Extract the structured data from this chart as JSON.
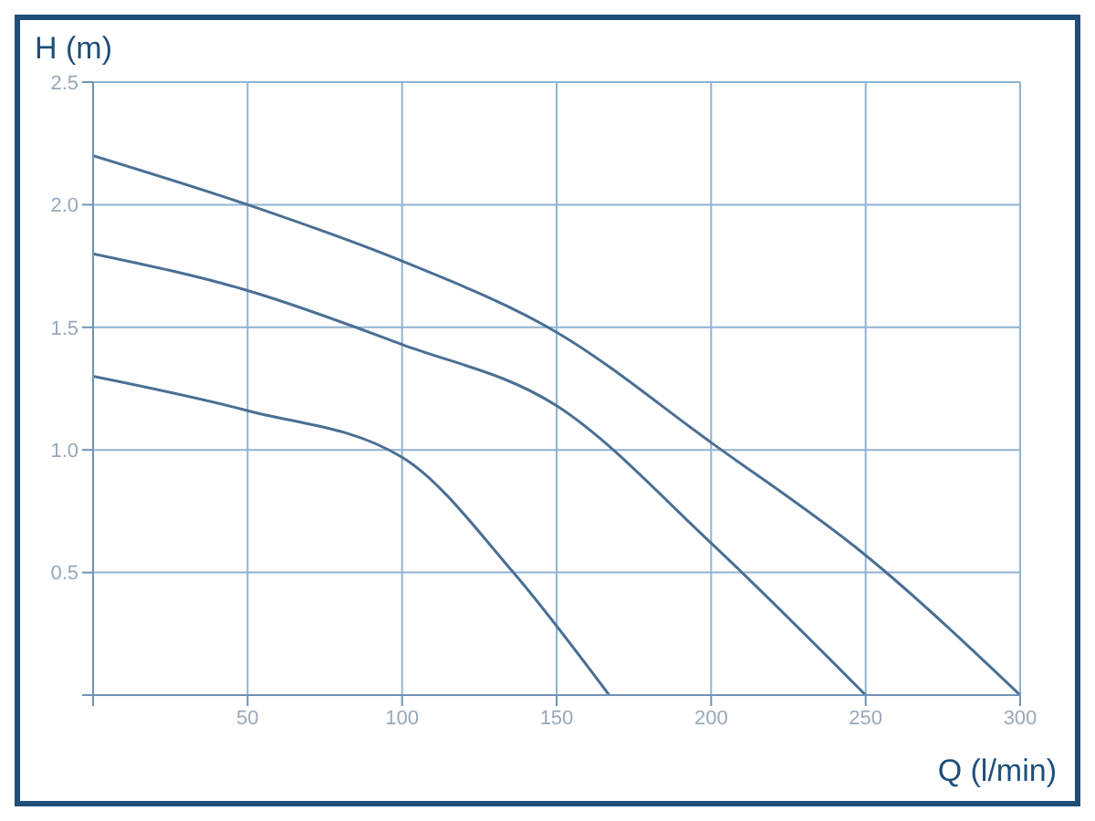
{
  "chart_data": {
    "type": "line",
    "xlabel": "Q (l/min)",
    "ylabel": "H (m)",
    "series": [
      {
        "color": "#4a6f94",
        "x": [
          0,
          50,
          100,
          150,
          200,
          250,
          300
        ],
        "values": [
          2.2,
          2.0,
          1.77,
          1.48,
          1.03,
          0.57,
          0
        ]
      },
      {
        "color": "#4a6f94",
        "x": [
          0,
          50,
          100,
          150,
          200,
          250
        ],
        "values": [
          1.8,
          1.65,
          1.43,
          1.18,
          0.62,
          0
        ]
      },
      {
        "color": "#4a6f94",
        "x": [
          0,
          50,
          100,
          136,
          167
        ],
        "values": [
          1.3,
          1.16,
          0.97,
          0.5,
          0
        ]
      }
    ],
    "xlim": [
      0,
      300
    ],
    "xticks": [
      {
        "value": 0,
        "label": null
      },
      50,
      100,
      150,
      200,
      250,
      300
    ],
    "ylim": [
      0,
      2.5
    ],
    "yticks": [
      {
        "value": 0,
        "label": null
      },
      0.5,
      {
        "value": 1,
        "label": "1.0"
      },
      1.5,
      {
        "value": 2,
        "label": "2.0"
      },
      2.5
    ],
    "grid": true,
    "marker": "none",
    "line_style": "solid"
  }
}
